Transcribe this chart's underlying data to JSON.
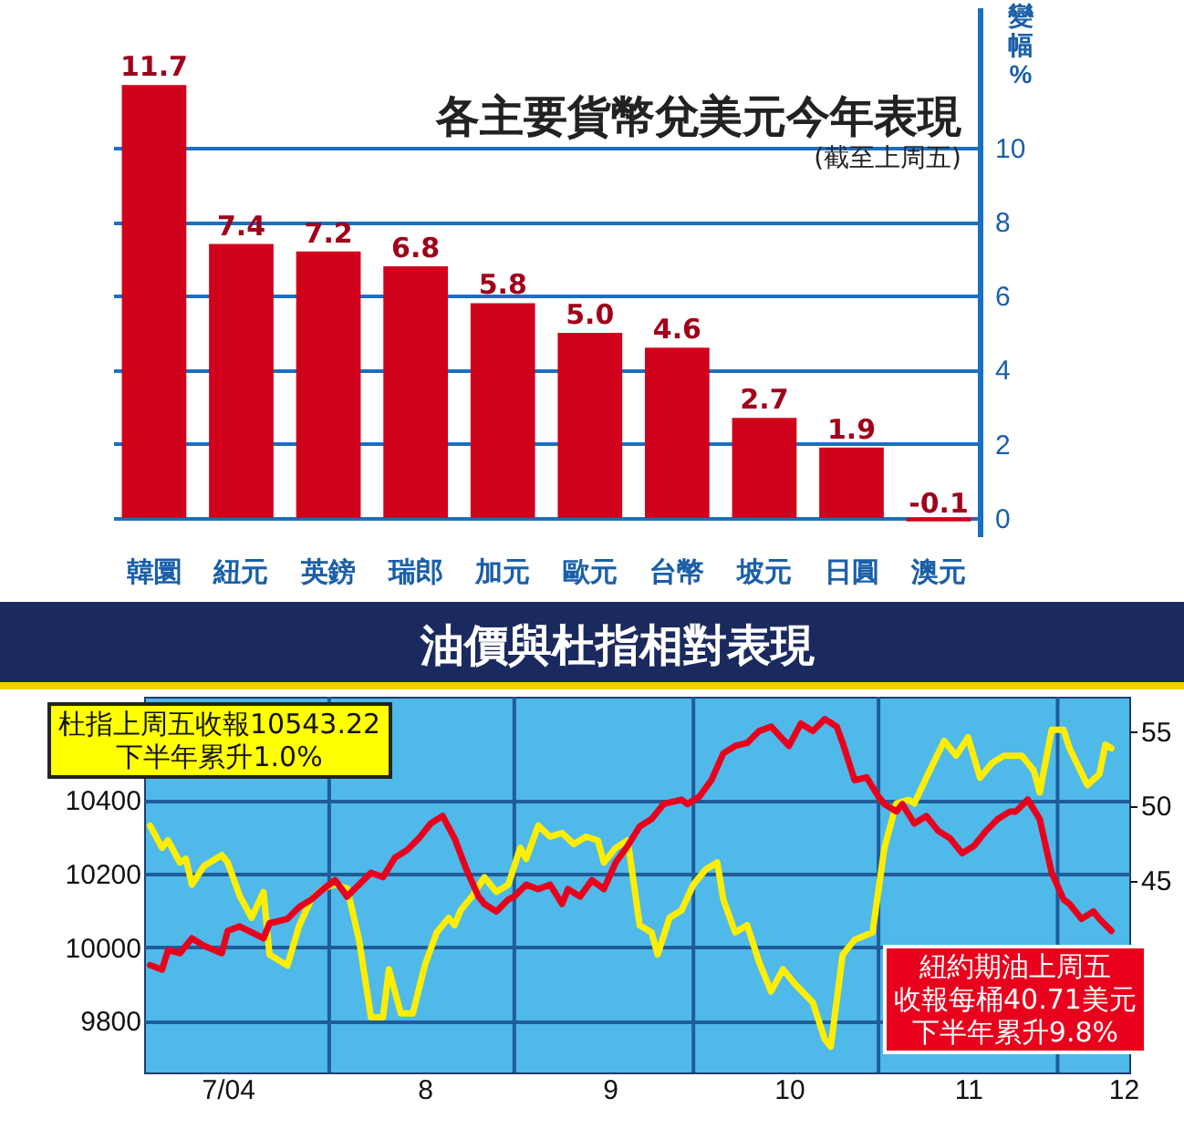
{
  "chart_data": [
    {
      "type": "bar",
      "title": "各主要貨幣兌美元今年表現",
      "subtitle": "(截至上周五)",
      "ylabel": "變幅%",
      "categories": [
        "韓圜",
        "紐元",
        "英鎊",
        "瑞郎",
        "加元",
        "歐元",
        "台幣",
        "坡元",
        "日圓",
        "澳元"
      ],
      "values": [
        11.7,
        7.4,
        7.2,
        6.8,
        5.8,
        5.0,
        4.6,
        2.7,
        1.9,
        -0.1
      ],
      "color": "#d0021b",
      "value_labels": [
        "11.7",
        "7.4",
        "7.2",
        "6.8",
        "5.8",
        "5.0",
        "4.6",
        "2.7",
        "1.9",
        "-0.1"
      ],
      "ylim": [
        -0.5,
        13.8
      ],
      "yticks": [
        0,
        2,
        4,
        6,
        8,
        10
      ],
      "grid": "y"
    },
    {
      "type": "line",
      "title": "油價與杜指相對表現",
      "annotations": [
        "杜指上周五收報10543.22",
        "下半年累升1.0%",
        "紐約期油上周五",
        "收報每桶40.71美元",
        "下半年累升9.8%"
      ],
      "xlim": [
        "2004-07-01",
        "2004-12-13"
      ],
      "xticks": [
        {
          "value": "2004-07-15",
          "label": "7/04"
        },
        {
          "value": "2004-08-01",
          "label": null
        },
        {
          "value": "2004-08-17",
          "label": "8"
        },
        {
          "value": "2004-09-01",
          "label": null
        },
        {
          "value": "2004-09-17",
          "label": "9"
        },
        {
          "value": "2004-10-01",
          "label": null
        },
        {
          "value": "2004-10-17",
          "label": "10"
        },
        {
          "value": "2004-11-01",
          "label": null
        },
        {
          "value": "2004-11-16",
          "label": "11"
        },
        {
          "value": "2004-12-01",
          "label": null
        },
        {
          "value": "2004-12-12",
          "label": "12"
        }
      ],
      "ylim": [
        9660,
        10680
      ],
      "yticks": [
        9800,
        10000,
        10200,
        10400
      ],
      "y2lim": [
        32.1,
        57.3
      ],
      "y2ticks": [
        45,
        50,
        55
      ],
      "grid": true,
      "series": [
        {
          "color": "#ffee00",
          "x": [
            "2004-07-02",
            "2004-07-04",
            "2004-07-05",
            "2004-07-07",
            "2004-07-08",
            "2004-07-09",
            "2004-07-11",
            "2004-07-14",
            "2004-07-15",
            "2004-07-17",
            "2004-07-19",
            "2004-07-21",
            "2004-07-22",
            "2004-07-25",
            "2004-07-27",
            "2004-07-29",
            "2004-07-31",
            "2004-08-02",
            "2004-08-04",
            "2004-08-06",
            "2004-08-08",
            "2004-08-10",
            "2004-08-11",
            "2004-08-13",
            "2004-08-15",
            "2004-08-17",
            "2004-08-19",
            "2004-08-21",
            "2004-08-22",
            "2004-08-23",
            "2004-08-25",
            "2004-08-27",
            "2004-08-29",
            "2004-08-31",
            "2004-09-02",
            "2004-09-03",
            "2004-09-05",
            "2004-09-07",
            "2004-09-09",
            "2004-09-11",
            "2004-09-13",
            "2004-09-15",
            "2004-09-16",
            "2004-09-18",
            "2004-09-20",
            "2004-09-22",
            "2004-09-24",
            "2004-09-25",
            "2004-09-27",
            "2004-09-29",
            "2004-10-01",
            "2004-10-03",
            "2004-10-05",
            "2004-10-06",
            "2004-10-08",
            "2004-10-10",
            "2004-10-12",
            "2004-10-14",
            "2004-10-16",
            "2004-10-18",
            "2004-10-21",
            "2004-10-23",
            "2004-10-24",
            "2004-10-26",
            "2004-10-28",
            "2004-10-31",
            "2004-11-02",
            "2004-11-04",
            "2004-11-06",
            "2004-11-07",
            "2004-11-09",
            "2004-11-12",
            "2004-11-14",
            "2004-11-16",
            "2004-11-18",
            "2004-11-20",
            "2004-11-22",
            "2004-11-25",
            "2004-11-27",
            "2004-11-28",
            "2004-11-30",
            "2004-12-02",
            "2004-12-03",
            "2004-12-06",
            "2004-12-08",
            "2004-12-09",
            "2004-12-10"
          ],
          "values": [
            10330,
            10270,
            10290,
            10230,
            10240,
            10170,
            10220,
            10250,
            10230,
            10140,
            10080,
            10150,
            9980,
            9950,
            10060,
            10130,
            10160,
            10170,
            10160,
            10020,
            9810,
            9810,
            9940,
            9820,
            9820,
            9950,
            10040,
            10080,
            10060,
            10100,
            10140,
            10190,
            10150,
            10170,
            10270,
            10240,
            10330,
            10300,
            10310,
            10280,
            10300,
            10290,
            10230,
            10270,
            10290,
            10060,
            10040,
            9980,
            10080,
            10100,
            10170,
            10210,
            10230,
            10130,
            10040,
            10060,
            9960,
            9880,
            9940,
            9900,
            9850,
            9750,
            9730,
            9980,
            10020,
            10040,
            10270,
            10390,
            10400,
            10390,
            10460,
            10560,
            10520,
            10570,
            10460,
            10500,
            10520,
            10520,
            10480,
            10420,
            10590,
            10590,
            10540,
            10440,
            10470,
            10550,
            10540
          ]
        },
        {
          "color": "#e8001c",
          "axis": "y2",
          "x": [
            "2004-07-02",
            "2004-07-04",
            "2004-07-05",
            "2004-07-07",
            "2004-07-09",
            "2004-07-11",
            "2004-07-14",
            "2004-07-15",
            "2004-07-17",
            "2004-07-21",
            "2004-07-22",
            "2004-07-25",
            "2004-07-27",
            "2004-07-29",
            "2004-07-31",
            "2004-08-02",
            "2004-08-04",
            "2004-08-06",
            "2004-08-08",
            "2004-08-10",
            "2004-08-12",
            "2004-08-14",
            "2004-08-16",
            "2004-08-18",
            "2004-08-20",
            "2004-08-22",
            "2004-08-24",
            "2004-08-26",
            "2004-08-27",
            "2004-08-29",
            "2004-08-31",
            "2004-09-01",
            "2004-09-03",
            "2004-09-05",
            "2004-09-07",
            "2004-09-09",
            "2004-09-10",
            "2004-09-12",
            "2004-09-14",
            "2004-09-16",
            "2004-09-18",
            "2004-09-20",
            "2004-09-22",
            "2004-09-24",
            "2004-09-26",
            "2004-09-29",
            "2004-09-30",
            "2004-10-02",
            "2004-10-04",
            "2004-10-06",
            "2004-10-08",
            "2004-10-10",
            "2004-10-12",
            "2004-10-14",
            "2004-10-17",
            "2004-10-19",
            "2004-10-21",
            "2004-10-23",
            "2004-10-25",
            "2004-10-26",
            "2004-10-28",
            "2004-10-30",
            "2004-11-01",
            "2004-11-02",
            "2004-11-04",
            "2004-11-05",
            "2004-11-07",
            "2004-11-09",
            "2004-11-11",
            "2004-11-13",
            "2004-11-15",
            "2004-11-17",
            "2004-11-19",
            "2004-11-21",
            "2004-11-23",
            "2004-11-24",
            "2004-11-26",
            "2004-11-28",
            "2004-11-30",
            "2004-12-02",
            "2004-12-03",
            "2004-12-05",
            "2004-12-07",
            "2004-12-08",
            "2004-12-10"
          ],
          "values": [
            39.3,
            39.0,
            40.3,
            40.1,
            41.1,
            40.6,
            40.1,
            41.6,
            41.9,
            41.1,
            42.1,
            42.4,
            43.2,
            43.7,
            44.4,
            45.0,
            43.9,
            44.7,
            45.5,
            45.2,
            46.5,
            47.0,
            47.8,
            48.8,
            49.3,
            47.8,
            45.7,
            43.9,
            43.4,
            42.9,
            43.7,
            43.9,
            44.7,
            44.4,
            44.7,
            43.4,
            44.4,
            43.9,
            45.0,
            44.4,
            46.2,
            47.3,
            48.6,
            49.1,
            50.1,
            50.4,
            50.1,
            50.6,
            51.7,
            53.5,
            54.0,
            54.2,
            55.0,
            55.3,
            54.0,
            55.5,
            55.0,
            55.8,
            55.3,
            54.2,
            51.7,
            51.9,
            50.6,
            50.1,
            49.6,
            50.1,
            48.8,
            49.3,
            48.3,
            47.8,
            46.8,
            47.3,
            48.3,
            49.1,
            49.6,
            49.6,
            50.4,
            49.1,
            45.5,
            43.7,
            43.4,
            42.4,
            42.9,
            42.4,
            41.6
          ]
        }
      ]
    }
  ]
}
